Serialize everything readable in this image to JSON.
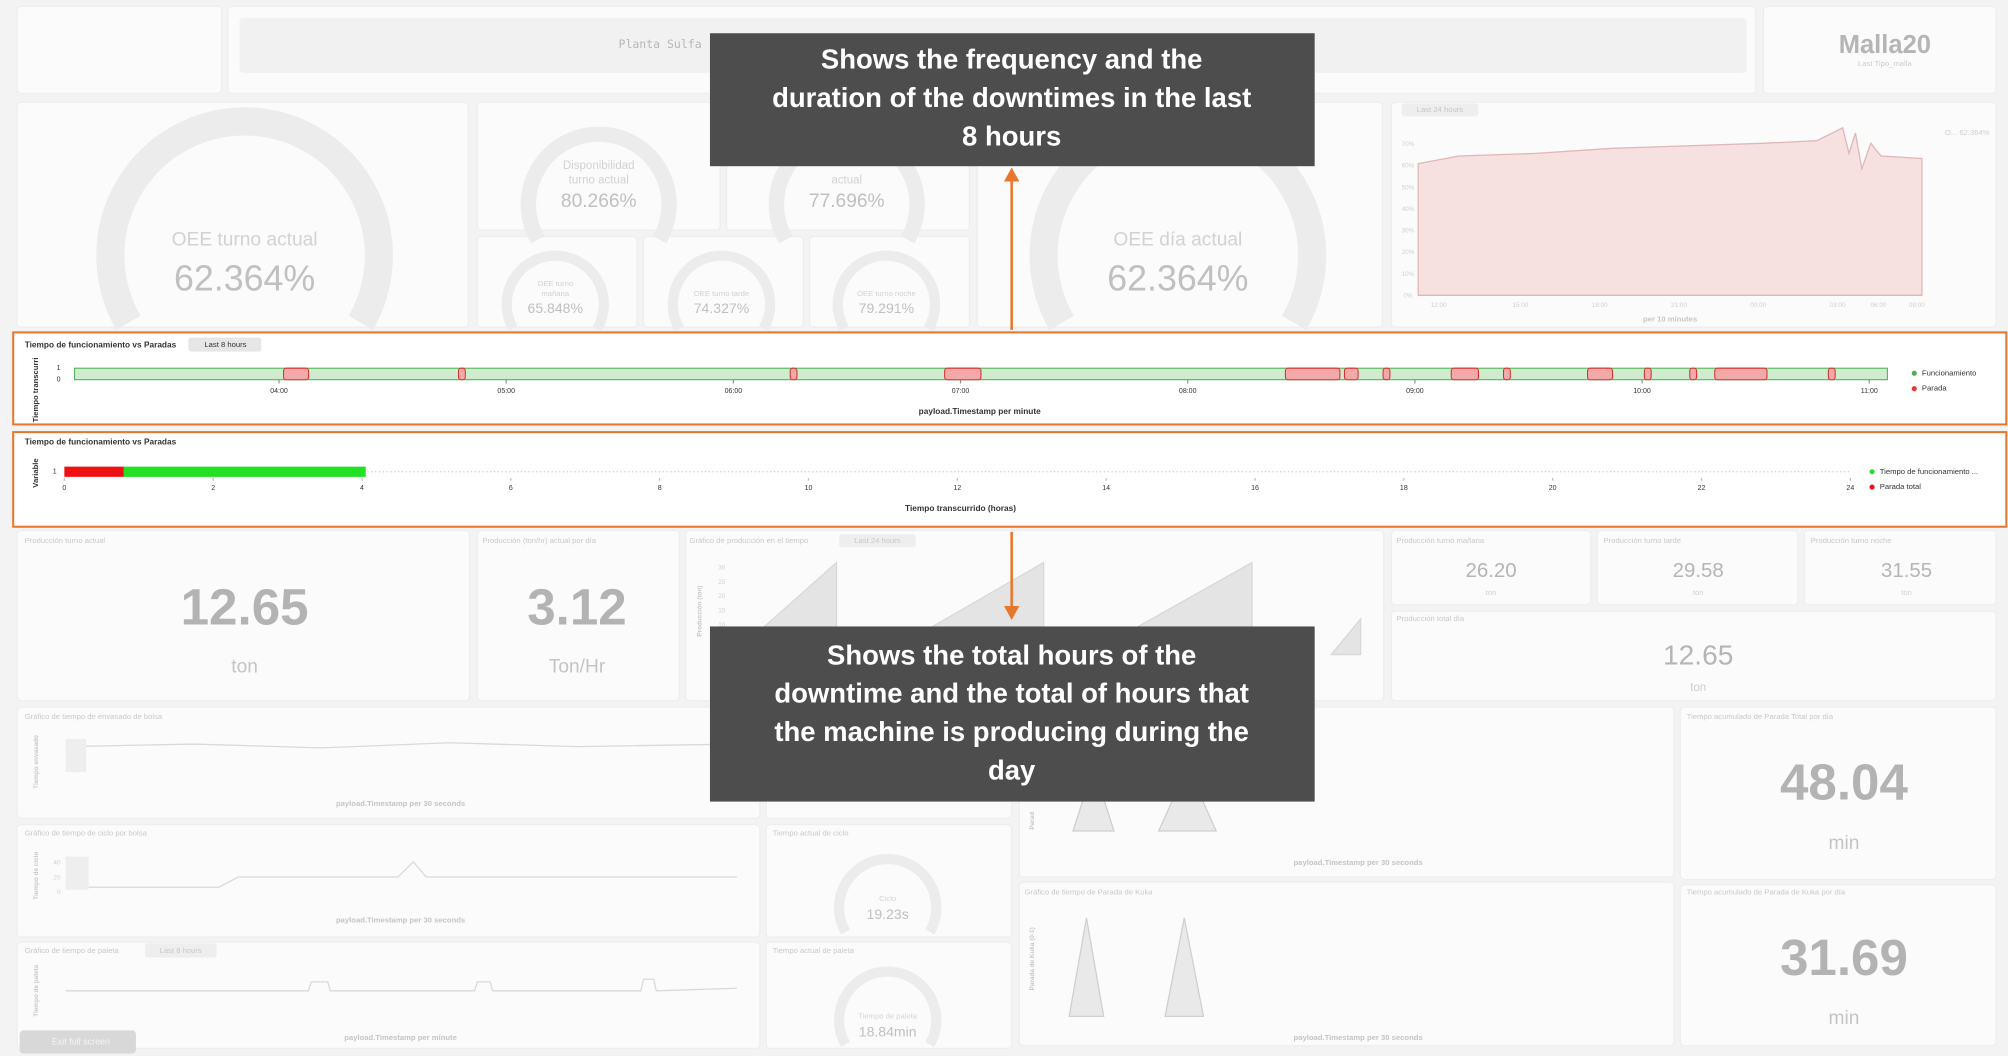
{
  "header": {
    "title": "Planta Sulfa",
    "logo_title": "Malla20",
    "logo_subtitle": "Last Tipo_malla"
  },
  "gauges": [
    {
      "label": [
        "OEE turno actual"
      ],
      "value": "62.364%"
    },
    {
      "label": [
        "Disponibilidad",
        "turno actual"
      ],
      "value": "80.266%"
    },
    {
      "label": [
        "actual"
      ],
      "value": "77.696%"
    },
    {
      "label": [
        "OEE turno",
        "mañana"
      ],
      "value": "65.848%"
    },
    {
      "label": [
        "OEE turno tarde"
      ],
      "value": "74.327%"
    },
    {
      "label": [
        "OEE turno noche"
      ],
      "value": "79.291%"
    },
    {
      "label": [
        "OEE día actual"
      ],
      "value": "62.364%"
    }
  ],
  "trend": {
    "badge": "Last 24 hours",
    "yticks": [
      "70%",
      "60%",
      "50%",
      "40%",
      "30%",
      "20%",
      "10%",
      "0%"
    ],
    "xticks": [
      "12:00",
      "15:00",
      "18:00",
      "21:00",
      "00:00",
      "03:00",
      "06:00",
      "09:00"
    ],
    "xlabel": "per 10 minutes",
    "legend": "O... 62.364%"
  },
  "chart_data": [
    {
      "type": "timeline",
      "title": "Tiempo de funcionamiento vs Paradas",
      "badge": "Last 8 hours",
      "ylabel": "Tiempo transcurri",
      "xlabel": "payload.Timestamp per minute",
      "xlim": [
        3.1,
        11.08
      ],
      "xticks": [
        {
          "value": 4,
          "label": "04:00"
        },
        {
          "value": 5,
          "label": "05:00"
        },
        {
          "value": 6,
          "label": "06:00"
        },
        {
          "value": 7,
          "label": "07:00"
        },
        {
          "value": 8,
          "label": "08:00"
        },
        {
          "value": 9,
          "label": "09:00"
        },
        {
          "value": 10,
          "label": "10:00"
        },
        {
          "value": 11,
          "label": "11:00"
        }
      ],
      "ylim": [
        0,
        1
      ],
      "yticks": [
        1,
        0
      ],
      "series": [
        {
          "name": "Funcionamiento",
          "color": "#4caf50"
        },
        {
          "name": "Parada",
          "color": "#e53935",
          "intervals": [
            [
              4.02,
              4.13
            ],
            [
              4.79,
              4.82
            ],
            [
              6.25,
              6.28
            ],
            [
              6.93,
              7.09
            ],
            [
              8.43,
              8.67
            ],
            [
              8.69,
              8.75
            ],
            [
              8.86,
              8.89
            ],
            [
              9.16,
              9.28
            ],
            [
              9.39,
              9.42
            ],
            [
              9.76,
              9.87
            ],
            [
              10.01,
              10.04
            ],
            [
              10.21,
              10.24
            ],
            [
              10.32,
              10.55
            ],
            [
              10.82,
              10.85
            ]
          ]
        }
      ]
    },
    {
      "type": "bar",
      "orientation": "horizontal",
      "stacked": true,
      "title": "Tiempo de funcionamiento vs Paradas",
      "ylabel": "Variable",
      "xlabel": "Tiempo transcurrido (horas)",
      "categories": [
        "1"
      ],
      "xlim": [
        0,
        24
      ],
      "xticks": [
        0,
        2,
        4,
        6,
        8,
        10,
        12,
        14,
        16,
        18,
        20,
        22,
        24
      ],
      "series": [
        {
          "name": "Tiempo de funcionamiento ...",
          "color": "#22e022",
          "values": [
            3.25
          ]
        },
        {
          "name": "Parada total",
          "color": "#ee1111",
          "values": [
            0.8
          ]
        }
      ]
    }
  ],
  "production": {
    "current": {
      "title": "Producción turno actual",
      "value": "12.65",
      "unit": "ton"
    },
    "rate": {
      "title": "Producción (ton/hr) actual por día",
      "value": "3.12",
      "unit": "Ton/Hr"
    },
    "chart": {
      "title": "Gráfico de producción en el tiempo",
      "badge": "Last 24 hours",
      "ylabel": "Producción (ton)",
      "yticks": [
        "30",
        "25",
        "20",
        "15",
        "10",
        "5"
      ]
    },
    "shifts": [
      {
        "title": "Producción turno mañana",
        "value": "26.20",
        "unit": "ton"
      },
      {
        "title": "Producción turno tarde",
        "value": "29.58",
        "unit": "ton"
      },
      {
        "title": "Producción turno noche",
        "value": "31.55",
        "unit": "ton"
      }
    ],
    "total": {
      "title": "Producción total día",
      "value": "12.65",
      "unit": "ton"
    }
  },
  "process": {
    "envasado": {
      "title": "Gráfico de tiempo de envasado de bolsa",
      "ylabel": "Tiempo envasado",
      "xlabel": "payload.Timestamp per 30 seconds"
    },
    "parada_total": {
      "title": "Tiempo acumulado de Parada Total por día",
      "value": "48.04",
      "unit": "min"
    },
    "stop_chart": {
      "ylabel": "Parad",
      "xlabel": "payload.Timestamp per 30 seconds"
    },
    "ciclo_chart": {
      "title": "Gráfico de tiempo de ciclo por bolsa",
      "ylabel": "Tiempo de ciclo",
      "yticks": [
        "40",
        "20",
        "0"
      ],
      "xlabel": "payload.Timestamp per 30 seconds"
    },
    "ciclo_now": {
      "title": "Tiempo actual de ciclo",
      "label": "Ciclo",
      "value": "19.23s"
    },
    "kuka_chart": {
      "title": "Gráfico de tiempo de Parada de Kuka",
      "ylabel": "Parada de Kuka (0-1)",
      "xlabel": "payload.Timestamp per 30 seconds"
    },
    "kuka_total": {
      "title": "Tiempo acumulado de Parada de Kuka por día",
      "value": "31.69",
      "unit": "min"
    },
    "paleta_chart": {
      "title": "Gráfico de tiempo de paleta",
      "badge": "Last 8 hours",
      "ylabel": "Tiempo de paleta",
      "xlabel": "payload.Timestamp per minute"
    },
    "paleta_now": {
      "title": "Tiempo actual de paleta",
      "label": "Tiempo de paleta",
      "value": "18.84min"
    }
  },
  "callouts": [
    {
      "lines": [
        "Shows the frequency and the",
        "duration of the downtimes in the last",
        "8 hours"
      ]
    },
    {
      "lines": [
        "Shows the total hours of the",
        "downtime and the total of hours that",
        "the machine is producing during the",
        "day"
      ]
    }
  ],
  "exit_button": "Exit full screen"
}
